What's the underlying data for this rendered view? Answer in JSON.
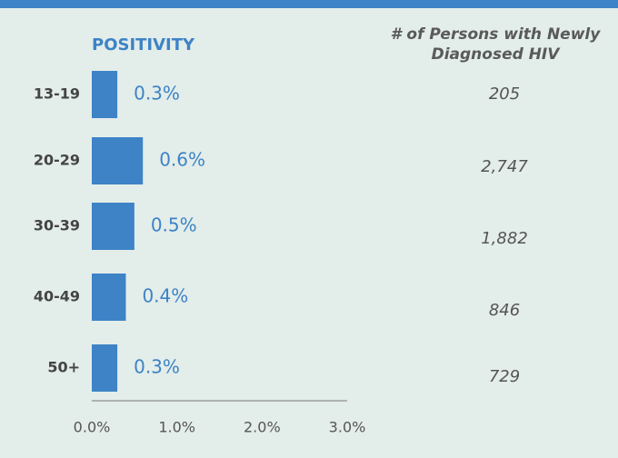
{
  "chart_data": {
    "type": "bar",
    "orientation": "horizontal",
    "title": "POSITIVITY",
    "categories": [
      "13-19",
      "20-29",
      "30-39",
      "40-49",
      "50+"
    ],
    "values": [
      0.3,
      0.6,
      0.5,
      0.4,
      0.3
    ],
    "value_labels": [
      "0.3%",
      "0.6%",
      "0.5%",
      "0.4%",
      "0.3%"
    ],
    "color": "#3d83c6",
    "xlim": [
      0,
      3
    ],
    "xticks": [
      {
        "value": 0,
        "label": "0.0%"
      },
      {
        "value": 1,
        "label": "1.0%"
      },
      {
        "value": 2,
        "label": "2.0%"
      },
      {
        "value": 3,
        "label": "3.0%"
      }
    ],
    "counts": {
      "title": "# of Persons with Newly Diagnosed HIV",
      "values": [
        205,
        2747,
        1882,
        846,
        729
      ],
      "value_labels": [
        "205",
        "2,747",
        "1,882",
        "846",
        "729"
      ]
    }
  }
}
